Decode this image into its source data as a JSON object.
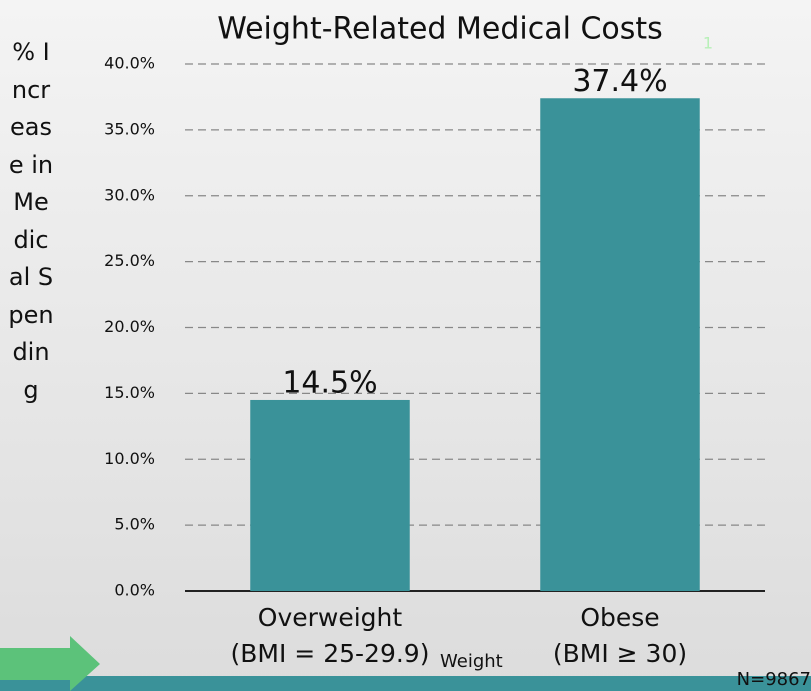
{
  "chart_data": {
    "type": "bar",
    "title": "Weight-Related Medical Costs",
    "title_note": "1",
    "y_label": "% Increase in Medical Spending",
    "x_label": "Weight",
    "note": "N=9867",
    "categories": [
      "Overweight\n(BMI = 25-29.9)",
      "Obese\n(BMI ≥ 30)"
    ],
    "values": [
      14.5,
      37.4
    ],
    "value_labels": [
      "14.5%",
      "37.4%"
    ],
    "color": "#3a9299",
    "ylim": [
      0,
      40
    ],
    "yticks": [
      {
        "value": 0,
        "label": "0.0%"
      },
      {
        "value": 5,
        "label": "5.0%"
      },
      {
        "value": 10,
        "label": "10.0%"
      },
      {
        "value": 15,
        "label": "15.0%"
      },
      {
        "value": 20,
        "label": "20.0%"
      },
      {
        "value": 25,
        "label": "25.0%"
      },
      {
        "value": 30,
        "label": "30.0%"
      },
      {
        "value": 35,
        "label": "35.0%"
      },
      {
        "value": 40,
        "label": "40.0%"
      }
    ],
    "grid": true
  }
}
